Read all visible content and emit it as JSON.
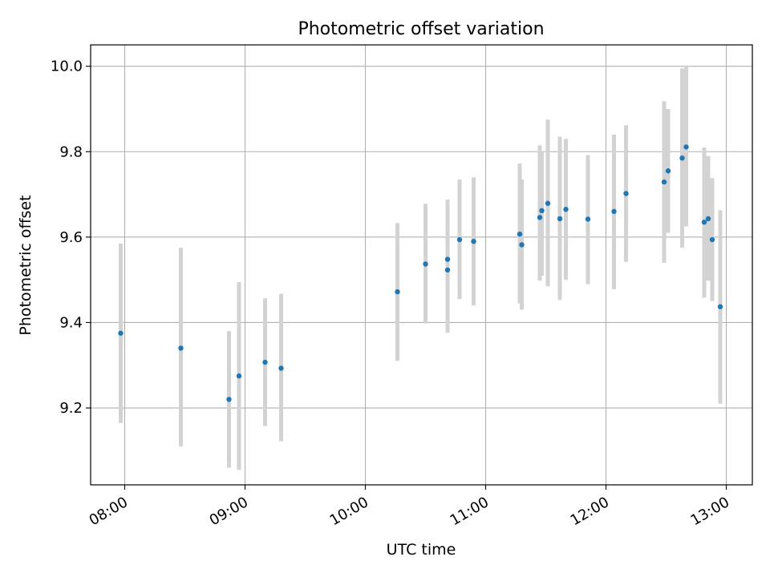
{
  "chart_data": {
    "type": "scatter",
    "title": "Photometric offset variation",
    "xlabel": "UTC time",
    "ylabel": "Photometric offset",
    "x_unit": "UTC time of day (HH:MM)",
    "xlim": [
      "07:43",
      "13:13"
    ],
    "ylim": [
      9.02,
      10.05
    ],
    "x_ticks": [
      "08:00",
      "09:00",
      "10:00",
      "11:00",
      "12:00",
      "13:00"
    ],
    "y_ticks": [
      9.2,
      9.4,
      9.6,
      9.8,
      10.0
    ],
    "y_tick_labels": [
      "9.2",
      "9.4",
      "9.6",
      "9.8",
      "10.0"
    ],
    "grid": true,
    "series": [
      {
        "marker_color": "#1f77b4",
        "errorbar_color": "#d3d3d3",
        "points": [
          {
            "t": "07:58",
            "y": 9.375,
            "lo": 9.165,
            "hi": 9.585
          },
          {
            "t": "08:28",
            "y": 9.34,
            "lo": 9.11,
            "hi": 9.575
          },
          {
            "t": "08:52",
            "y": 9.22,
            "lo": 9.06,
            "hi": 9.38
          },
          {
            "t": "08:57",
            "y": 9.275,
            "lo": 9.055,
            "hi": 9.495
          },
          {
            "t": "09:10",
            "y": 9.307,
            "lo": 9.158,
            "hi": 9.457
          },
          {
            "t": "09:18",
            "y": 9.293,
            "lo": 9.122,
            "hi": 9.467
          },
          {
            "t": "10:16",
            "y": 9.472,
            "lo": 9.31,
            "hi": 9.633
          },
          {
            "t": "10:30",
            "y": 9.537,
            "lo": 9.398,
            "hi": 9.678
          },
          {
            "t": "10:41",
            "y": 9.523,
            "lo": 9.376,
            "hi": 9.668
          },
          {
            "t": "10:41",
            "y": 9.548,
            "lo": 9.408,
            "hi": 9.688
          },
          {
            "t": "10:47",
            "y": 9.594,
            "lo": 9.455,
            "hi": 9.735
          },
          {
            "t": "10:54",
            "y": 9.59,
            "lo": 9.44,
            "hi": 9.74
          },
          {
            "t": "11:17",
            "y": 9.607,
            "lo": 9.445,
            "hi": 9.772
          },
          {
            "t": "11:18",
            "y": 9.582,
            "lo": 9.43,
            "hi": 9.735
          },
          {
            "t": "11:27",
            "y": 9.646,
            "lo": 9.498,
            "hi": 9.815
          },
          {
            "t": "11:28",
            "y": 9.662,
            "lo": 9.51,
            "hi": 9.8
          },
          {
            "t": "11:31",
            "y": 9.679,
            "lo": 9.485,
            "hi": 9.875
          },
          {
            "t": "11:37",
            "y": 9.643,
            "lo": 9.453,
            "hi": 9.835
          },
          {
            "t": "11:40",
            "y": 9.665,
            "lo": 9.5,
            "hi": 9.83
          },
          {
            "t": "11:51",
            "y": 9.642,
            "lo": 9.49,
            "hi": 9.792
          },
          {
            "t": "12:04",
            "y": 9.66,
            "lo": 9.478,
            "hi": 9.84
          },
          {
            "t": "12:10",
            "y": 9.702,
            "lo": 9.542,
            "hi": 9.862
          },
          {
            "t": "12:29",
            "y": 9.729,
            "lo": 9.54,
            "hi": 9.918
          },
          {
            "t": "12:31",
            "y": 9.755,
            "lo": 9.61,
            "hi": 9.9
          },
          {
            "t": "12:38",
            "y": 9.785,
            "lo": 9.575,
            "hi": 9.995
          },
          {
            "t": "12:40",
            "y": 9.811,
            "lo": 9.625,
            "hi": 10.0
          },
          {
            "t": "12:49",
            "y": 9.635,
            "lo": 9.458,
            "hi": 9.81
          },
          {
            "t": "12:51",
            "y": 9.643,
            "lo": 9.498,
            "hi": 9.79
          },
          {
            "t": "12:53",
            "y": 9.594,
            "lo": 9.45,
            "hi": 9.738
          },
          {
            "t": "12:57",
            "y": 9.437,
            "lo": 9.21,
            "hi": 9.663
          }
        ]
      }
    ]
  }
}
